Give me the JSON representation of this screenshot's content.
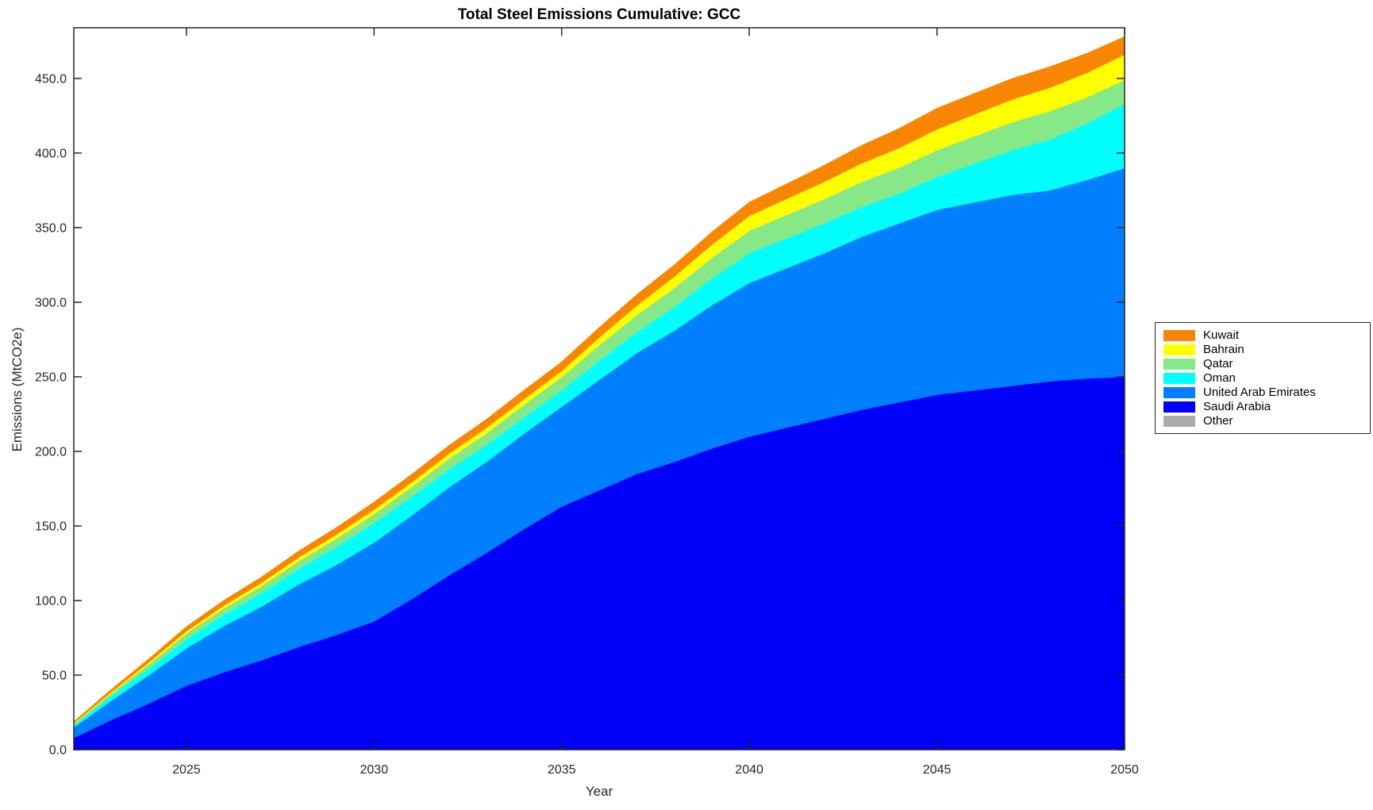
{
  "chart_data": {
    "type": "area",
    "stacked": true,
    "title": "Total Steel Emissions Cumulative: GCC",
    "xlabel": "Year",
    "ylabel": "Emissions (MtCO2e)",
    "xlim": [
      2022,
      2050
    ],
    "ylim": [
      0,
      484
    ],
    "x_ticks": [
      2025,
      2030,
      2035,
      2040,
      2045,
      2050
    ],
    "y_ticks": [
      0,
      50,
      100,
      150,
      200,
      250,
      300,
      350,
      400,
      450
    ],
    "y_tick_labels": [
      "0.0",
      "50.0",
      "100.0",
      "150.0",
      "200.0",
      "250.0",
      "300.0",
      "350.0",
      "400.0",
      "450.0"
    ],
    "grid": false,
    "legend_position": "right-outside",
    "axis_color": "#262626",
    "years": [
      2022,
      2023,
      2024,
      2025,
      2026,
      2027,
      2028,
      2029,
      2030,
      2031,
      2032,
      2033,
      2034,
      2035,
      2036,
      2037,
      2038,
      2039,
      2040,
      2041,
      2042,
      2043,
      2044,
      2045,
      2046,
      2047,
      2048,
      2049,
      2050
    ],
    "series": [
      {
        "name": "Kuwait",
        "color": "#F98602",
        "values": [
          1,
          1.7,
          2.3,
          3,
          3.4,
          3.8,
          4.2,
          4.6,
          5,
          5.2,
          5.4,
          5.6,
          5.8,
          6,
          6.6,
          7.2,
          7.8,
          8.4,
          9,
          10,
          11,
          12,
          13,
          14,
          14,
          14,
          14,
          13,
          12
        ]
      },
      {
        "name": "Bahrain",
        "color": "#FFFF00",
        "values": [
          0.5,
          0.8,
          1.2,
          1.5,
          1.8,
          2.1,
          2.4,
          2.7,
          3,
          3.2,
          3.4,
          3.6,
          3.8,
          4,
          5.2,
          6.4,
          7.6,
          8.8,
          10,
          10.8,
          11.6,
          12.4,
          13.2,
          14,
          14.6,
          15.2,
          15.8,
          16.4,
          17
        ]
      },
      {
        "name": "Qatar",
        "color": "#86E886",
        "values": [
          0.8,
          1.9,
          2.9,
          4,
          4.4,
          4.8,
          5.2,
          5.6,
          6,
          6.6,
          7.2,
          7.8,
          8.4,
          9,
          10.2,
          11.4,
          12.6,
          13.8,
          15,
          15.6,
          16.2,
          16.8,
          17.4,
          18,
          18.4,
          18.7,
          19,
          17.5,
          16
        ]
      },
      {
        "name": "Oman",
        "color": "#00FFFF",
        "values": [
          1.5,
          3,
          4.5,
          6,
          7.5,
          9,
          10.5,
          12,
          13,
          12.5,
          12,
          11.5,
          11,
          11,
          13,
          14,
          16,
          18,
          20,
          20,
          20,
          20,
          20,
          22,
          26,
          30,
          34,
          38,
          43
        ]
      },
      {
        "name": "United Arab Emirates",
        "color": "#0080FF",
        "values": [
          7,
          13,
          19,
          25,
          31,
          36,
          42,
          47,
          53,
          56,
          59,
          61,
          64,
          67,
          74,
          81,
          88,
          96,
          103,
          107,
          111,
          116,
          120,
          124,
          126,
          128,
          128,
          133,
          140
        ]
      },
      {
        "name": "Saudi Arabia",
        "color": "#0000FA",
        "values": [
          8,
          20,
          31,
          43,
          52,
          60,
          69,
          77,
          86,
          101,
          117,
          132,
          148,
          163,
          174,
          185,
          193,
          202,
          210,
          216,
          222,
          228,
          233,
          238,
          241,
          244,
          247,
          249,
          250
        ]
      },
      {
        "name": "Other",
        "color": "#ABABAB",
        "values": [
          0,
          0,
          0,
          0,
          0,
          0,
          0,
          0,
          0,
          0,
          0,
          0,
          0,
          0,
          0,
          0,
          0,
          0,
          0,
          0,
          0,
          0,
          0,
          0,
          0,
          0,
          0,
          0,
          0
        ]
      }
    ]
  }
}
